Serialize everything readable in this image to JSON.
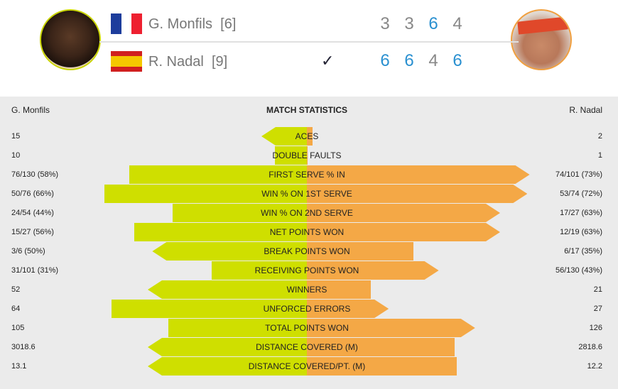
{
  "players": [
    {
      "name": "G. Monfils",
      "seed": "[6]",
      "country": "France",
      "scores": [
        "3",
        "3",
        "6",
        "4"
      ],
      "won_sets": [
        false,
        false,
        true,
        false
      ]
    },
    {
      "name": "R. Nadal",
      "seed": "[9]",
      "country": "Spain",
      "scores": [
        "6",
        "6",
        "4",
        "6"
      ],
      "won_sets": [
        true,
        true,
        false,
        true
      ],
      "winner_mark": "✓"
    }
  ],
  "colors": {
    "left": "#cfdf00",
    "right": "#f4a846",
    "set_win": "#2a90d0",
    "set_loss": "#888888"
  },
  "stats": {
    "title": "MATCH STATISTICS",
    "left_player": "G. Monfils",
    "right_player": "R. Nadal",
    "rows": [
      {
        "label": "ACES",
        "left": "15",
        "right": "2",
        "left_bar_pct": 20,
        "right_bar_pct": 2.5,
        "leader": "left"
      },
      {
        "label": "DOUBLE FAULTS",
        "left": "10",
        "right": "1",
        "left_bar_pct": 14,
        "right_bar_pct": 0.3,
        "leader": "none"
      },
      {
        "label": "FIRST SERVE % IN",
        "left": "76/130 (58%)",
        "right": "74/101 (73%)",
        "left_bar_pct": 78,
        "right_bar_pct": 98,
        "leader": "right"
      },
      {
        "label": "WIN % ON 1ST SERVE",
        "left": "50/76 (66%)",
        "right": "53/74 (72%)",
        "left_bar_pct": 89,
        "right_bar_pct": 97,
        "leader": "right"
      },
      {
        "label": "WIN % ON 2ND SERVE",
        "left": "24/54 (44%)",
        "right": "17/27 (63%)",
        "left_bar_pct": 59,
        "right_bar_pct": 85,
        "leader": "right"
      },
      {
        "label": "NET POINTS WON",
        "left": "15/27 (56%)",
        "right": "12/19 (63%)",
        "left_bar_pct": 76,
        "right_bar_pct": 85,
        "leader": "right"
      },
      {
        "label": "BREAK POINTS WON",
        "left": "3/6 (50%)",
        "right": "6/17 (35%)",
        "left_bar_pct": 68,
        "right_bar_pct": 47,
        "leader": "left"
      },
      {
        "label": "RECEIVING POINTS WON",
        "left": "31/101 (31%)",
        "right": "56/130 (43%)",
        "left_bar_pct": 42,
        "right_bar_pct": 58,
        "leader": "right"
      },
      {
        "label": "WINNERS",
        "left": "52",
        "right": "21",
        "left_bar_pct": 70,
        "right_bar_pct": 28,
        "leader": "left"
      },
      {
        "label": "UNFORCED ERRORS",
        "left": "64",
        "right": "27",
        "left_bar_pct": 86,
        "right_bar_pct": 36,
        "leader": "right"
      },
      {
        "label": "TOTAL POINTS WON",
        "left": "105",
        "right": "126",
        "left_bar_pct": 61,
        "right_bar_pct": 74,
        "leader": "right"
      },
      {
        "label": "DISTANCE COVERED (M)",
        "left": "3018.6",
        "right": "2818.6",
        "left_bar_pct": 70,
        "right_bar_pct": 65,
        "leader": "left"
      },
      {
        "label": "DISTANCE COVERED/PT. (M)",
        "left": "13.1",
        "right": "12.2",
        "left_bar_pct": 70,
        "right_bar_pct": 66,
        "leader": "left"
      }
    ]
  }
}
